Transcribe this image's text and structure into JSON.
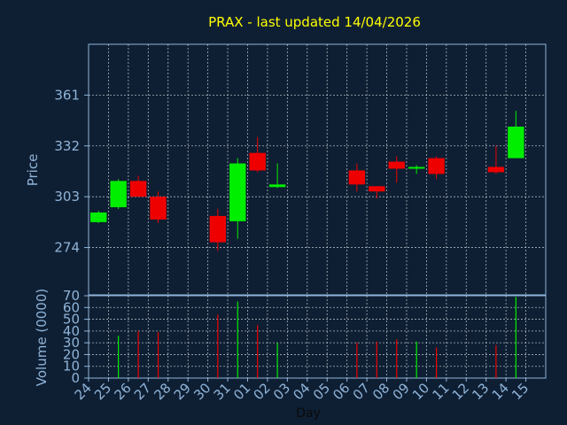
{
  "title": "PRAX - last updated 14/04/2026",
  "colors": {
    "background": "#0f1f33",
    "plot_border": "#8fb4d9",
    "grid": "#d0d8e0",
    "title": "#ffff00",
    "axis_text": "#8fb4d9",
    "xlabel_text": "#0a0a0a",
    "up": "#00ee00",
    "down": "#ee0000"
  },
  "chart_data": [
    {
      "type": "candlestick",
      "title": "PRAX - last updated 14/04/2026",
      "ylabel": "Price",
      "yticks": [
        274,
        303,
        332,
        361
      ],
      "ylim": [
        247,
        390
      ],
      "grid": true,
      "categories": [
        "24",
        "25",
        "26",
        "27",
        "28",
        "29",
        "30",
        "31",
        "01",
        "02",
        "03",
        "04",
        "05",
        "06",
        "07",
        "08",
        "09",
        "10",
        "11",
        "12",
        "13",
        "14",
        "15"
      ],
      "candles": [
        {
          "x": "24",
          "open": 288.5,
          "close": 294,
          "high": 295,
          "low": 288,
          "dir": "up"
        },
        {
          "x": "25",
          "open": 297,
          "close": 312,
          "high": 313,
          "low": 296,
          "dir": "up"
        },
        {
          "x": "26",
          "open": 312,
          "close": 303,
          "high": 315,
          "low": 303,
          "dir": "down"
        },
        {
          "x": "27",
          "open": 303,
          "close": 290,
          "high": 306,
          "low": 288,
          "dir": "down"
        },
        {
          "x": "30",
          "open": 292,
          "close": 277,
          "high": 296,
          "low": 272,
          "dir": "down"
        },
        {
          "x": "31",
          "open": 289,
          "close": 322,
          "high": 325,
          "low": 279,
          "dir": "up"
        },
        {
          "x": "01",
          "open": 328,
          "close": 318,
          "high": 337,
          "low": 317,
          "dir": "down"
        },
        {
          "x": "02",
          "open": 308.5,
          "close": 310,
          "high": 322,
          "low": 308,
          "dir": "up"
        },
        {
          "x": "06",
          "open": 318,
          "close": 310,
          "high": 322,
          "low": 306,
          "dir": "down"
        },
        {
          "x": "07",
          "open": 309,
          "close": 306,
          "high": 309,
          "low": 302,
          "dir": "down"
        },
        {
          "x": "08",
          "open": 323,
          "close": 319,
          "high": 326,
          "low": 311,
          "dir": "down"
        },
        {
          "x": "09",
          "open": 319,
          "close": 320,
          "high": 321,
          "low": 316,
          "dir": "up"
        },
        {
          "x": "10",
          "open": 325,
          "close": 316,
          "high": 326,
          "low": 313,
          "dir": "down"
        },
        {
          "x": "13",
          "open": 320,
          "close": 317,
          "high": 332,
          "low": 316,
          "dir": "down"
        },
        {
          "x": "14",
          "open": 325,
          "close": 343,
          "high": 352,
          "low": 325,
          "dir": "up"
        }
      ]
    },
    {
      "type": "bar",
      "ylabel": "Volume (0000)",
      "xlabel": "Day",
      "yticks": [
        0,
        10,
        20,
        30,
        40,
        50,
        60,
        70
      ],
      "ylim": [
        0,
        70
      ],
      "grid": true,
      "categories": [
        "24",
        "25",
        "26",
        "27",
        "28",
        "29",
        "30",
        "31",
        "01",
        "02",
        "03",
        "04",
        "05",
        "06",
        "07",
        "08",
        "09",
        "10",
        "11",
        "12",
        "13",
        "14",
        "15"
      ],
      "values": [
        {
          "x": "25",
          "value": 36,
          "dir": "up"
        },
        {
          "x": "26",
          "value": 40,
          "dir": "down"
        },
        {
          "x": "27",
          "value": 39,
          "dir": "down"
        },
        {
          "x": "30",
          "value": 54,
          "dir": "down"
        },
        {
          "x": "31",
          "value": 65,
          "dir": "up"
        },
        {
          "x": "01",
          "value": 45,
          "dir": "down"
        },
        {
          "x": "02",
          "value": 30,
          "dir": "up"
        },
        {
          "x": "06",
          "value": 30,
          "dir": "down"
        },
        {
          "x": "07",
          "value": 31,
          "dir": "down"
        },
        {
          "x": "08",
          "value": 33,
          "dir": "down"
        },
        {
          "x": "09",
          "value": 31,
          "dir": "up"
        },
        {
          "x": "10",
          "value": 26,
          "dir": "down"
        },
        {
          "x": "13",
          "value": 28,
          "dir": "down"
        },
        {
          "x": "14",
          "value": 69,
          "dir": "up"
        }
      ]
    }
  ]
}
